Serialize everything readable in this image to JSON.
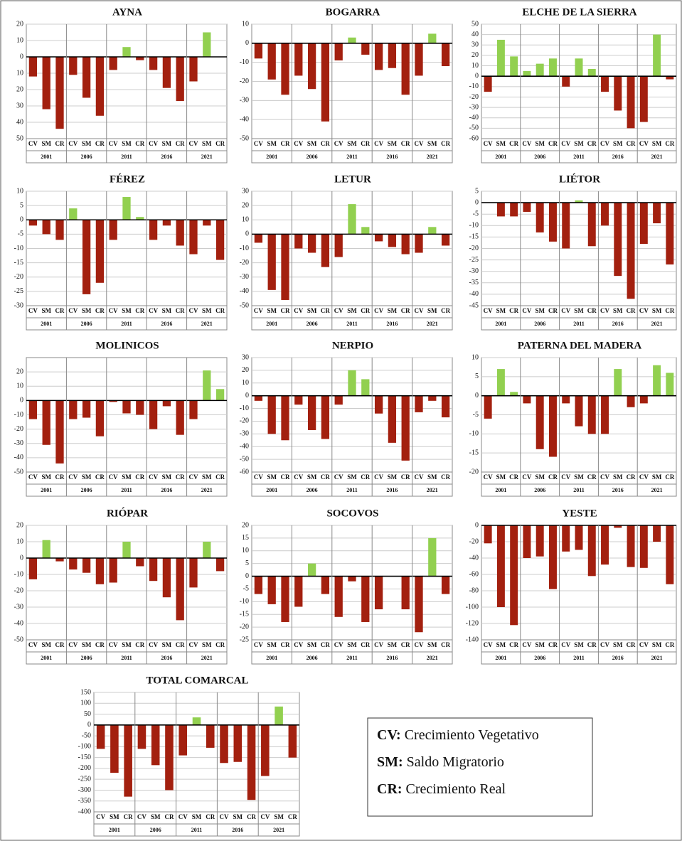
{
  "chart_data": [
    {
      "type": "bar",
      "title": "AYNA",
      "categories": [
        "CV",
        "SM",
        "CR",
        "CV",
        "SM",
        "CR",
        "CV",
        "SM",
        "CR",
        "CV",
        "SM",
        "CR",
        "CV",
        "SM",
        "CR"
      ],
      "groups": [
        "2001",
        "2006",
        "2011",
        "2016",
        "2021"
      ],
      "values": [
        -12,
        -32,
        -44,
        -11,
        -25,
        -36,
        -8,
        6,
        -2,
        -8,
        -19,
        -27,
        -15,
        15,
        0
      ],
      "ylim": [
        -50,
        20
      ],
      "yticks": [
        20,
        10,
        0,
        {
          "value": -10,
          "label": "10"
        },
        {
          "value": -20,
          "label": "20"
        },
        {
          "value": -30,
          "label": "30"
        },
        {
          "value": -40,
          "label": "40"
        },
        {
          "value": -50,
          "label": "50"
        }
      ],
      "positive_color": "#92d050",
      "negative_color": "#a3200f",
      "grid": true
    },
    {
      "type": "bar",
      "title": "BOGARRA",
      "categories": [
        "CV",
        "SM",
        "CR",
        "CV",
        "SM",
        "CR",
        "CV",
        "SM",
        "CR",
        "CV",
        "SM",
        "CR",
        "CV",
        "SM",
        "CR"
      ],
      "groups": [
        "2001",
        "2006",
        "2011",
        "2016",
        "2021"
      ],
      "values": [
        -8,
        -19,
        -27,
        -17,
        -24,
        -41,
        -9,
        3,
        -6,
        -14,
        -13,
        -27,
        -17,
        5,
        -12
      ],
      "ylim": [
        -50,
        10
      ],
      "yticks": [
        10,
        0,
        -10,
        -20,
        -30,
        -40,
        -50
      ],
      "positive_color": "#92d050",
      "negative_color": "#a3200f",
      "grid": true
    },
    {
      "type": "bar",
      "title": "ELCHE DE LA SIERRA",
      "categories": [
        "CV",
        "SM",
        "CR",
        "CV",
        "SM",
        "CR",
        "CV",
        "SM",
        "CR",
        "CV",
        "SM",
        "CR",
        "CV",
        "SM",
        "CR"
      ],
      "groups": [
        "2001",
        "2006",
        "2011",
        "2016",
        "2021"
      ],
      "values": [
        -15,
        35,
        19,
        5,
        12,
        17,
        -10,
        17,
        7,
        -15,
        -33,
        -50,
        -44,
        40,
        -3
      ],
      "ylim": [
        -60,
        50
      ],
      "yticks": [
        50,
        40,
        30,
        20,
        10,
        0,
        -10,
        -20,
        -30,
        -40,
        -50,
        -60
      ],
      "positive_color": "#92d050",
      "negative_color": "#a3200f",
      "grid": true
    },
    {
      "type": "bar",
      "title": "FÉREZ",
      "categories": [
        "CV",
        "SM",
        "CR",
        "CV",
        "SM",
        "CR",
        "CV",
        "SM",
        "CR",
        "CV",
        "SM",
        "CR",
        "CV",
        "SM",
        "CR"
      ],
      "groups": [
        "2001",
        "2006",
        "2011",
        "2016",
        "2021"
      ],
      "values": [
        -2,
        -5,
        -7,
        4,
        -26,
        -22,
        -7,
        8,
        1,
        -7,
        -2,
        -9,
        -12,
        -2,
        -14
      ],
      "ylim": [
        -30,
        10
      ],
      "yticks": [
        10,
        5,
        0,
        -5,
        -10,
        -15,
        -20,
        -25,
        -30
      ],
      "positive_color": "#92d050",
      "negative_color": "#a3200f",
      "grid": true
    },
    {
      "type": "bar",
      "title": "LETUR",
      "categories": [
        "CV",
        "SM",
        "CR",
        "CV",
        "SM",
        "CR",
        "CV",
        "SM",
        "CR",
        "CV",
        "SM",
        "CR",
        "CV",
        "SM",
        "CR"
      ],
      "groups": [
        "2001",
        "2006",
        "2011",
        "2016",
        "2021"
      ],
      "values": [
        -6,
        -39,
        -46,
        -10,
        -13,
        -23,
        -16,
        21,
        5,
        -5,
        -9,
        -14,
        -13,
        5,
        -8
      ],
      "ylim": [
        -50,
        30
      ],
      "yticks": [
        30,
        20,
        10,
        0,
        -10,
        -20,
        -30,
        -40,
        -50
      ],
      "positive_color": "#92d050",
      "negative_color": "#a3200f",
      "grid": true
    },
    {
      "type": "bar",
      "title": "LIÉTOR",
      "categories": [
        "CV",
        "SM",
        "CR",
        "CV",
        "SM",
        "CR",
        "CV",
        "SM",
        "CR",
        "CV",
        "SM",
        "CR",
        "CV",
        "SM",
        "CR"
      ],
      "groups": [
        "2001",
        "2006",
        "2011",
        "2016",
        "2021"
      ],
      "values": [
        0,
        -6,
        -6,
        -4,
        -13,
        -17,
        -20,
        1,
        -19,
        -10,
        -32,
        -42,
        -18,
        -9,
        -27
      ],
      "ylim": [
        -45,
        5
      ],
      "yticks": [
        5,
        0,
        -5,
        -10,
        -15,
        -20,
        -25,
        -30,
        -35,
        -40,
        -45
      ],
      "positive_color": "#92d050",
      "negative_color": "#a3200f",
      "grid": true
    },
    {
      "type": "bar",
      "title": "MOLINICOS",
      "categories": [
        "CV",
        "SM",
        "CR",
        "CV",
        "SM",
        "CR",
        "CV",
        "SM",
        "CR",
        "CV",
        "SM",
        "CR",
        "CV",
        "SM",
        "CR"
      ],
      "groups": [
        "2001",
        "2006",
        "2011",
        "2016",
        "2021"
      ],
      "values": [
        -13,
        -31,
        -44,
        -13,
        -12,
        -25,
        -1,
        -9,
        -10,
        -20,
        -4,
        -24,
        -13,
        21,
        8
      ],
      "ylim": [
        -50,
        30
      ],
      "yticks": [
        20,
        10,
        0,
        -10,
        -20,
        -30,
        -40,
        -50
      ],
      "positive_color": "#92d050",
      "negative_color": "#a3200f",
      "grid": true
    },
    {
      "type": "bar",
      "title": "NERPIO",
      "categories": [
        "CV",
        "SM",
        "CR",
        "CV",
        "SM",
        "CR",
        "CV",
        "SM",
        "CR",
        "CV",
        "SM",
        "CR",
        "CV",
        "SM",
        "CR"
      ],
      "groups": [
        "2001",
        "2006",
        "2011",
        "2016",
        "2021"
      ],
      "values": [
        -4,
        -30,
        -35,
        -7,
        -27,
        -34,
        -7,
        20,
        13,
        -14,
        -37,
        -51,
        -13,
        -4,
        -17
      ],
      "ylim": [
        -60,
        30
      ],
      "yticks": [
        30,
        20,
        10,
        0,
        -10,
        -20,
        -30,
        -40,
        -50,
        -60
      ],
      "positive_color": "#92d050",
      "negative_color": "#a3200f",
      "grid": true
    },
    {
      "type": "bar",
      "title": "PATERNA DEL MADERA",
      "categories": [
        "CV",
        "SM",
        "CR",
        "CV",
        "SM",
        "CR",
        "CV",
        "SM",
        "CR",
        "CV",
        "SM",
        "CR",
        "CV",
        "SM",
        "CR"
      ],
      "groups": [
        "2001",
        "2006",
        "2011",
        "2016",
        "2021"
      ],
      "values": [
        -6,
        7,
        1,
        -2,
        -14,
        -16,
        -2,
        -8,
        -10,
        -10,
        7,
        -3,
        -2,
        8,
        6
      ],
      "ylim": [
        -20,
        10
      ],
      "yticks": [
        10,
        5,
        0,
        -5,
        -10,
        -15,
        -20
      ],
      "positive_color": "#92d050",
      "negative_color": "#a3200f",
      "grid": true
    },
    {
      "type": "bar",
      "title": "RIÓPAR",
      "categories": [
        "CV",
        "SM",
        "CR",
        "CV",
        "SM",
        "CR",
        "CV",
        "SM",
        "CR",
        "CV",
        "SM",
        "CR",
        "CV",
        "SM",
        "CR"
      ],
      "groups": [
        "2001",
        "2006",
        "2011",
        "2016",
        "2021"
      ],
      "values": [
        -13,
        11,
        -2,
        -7,
        -9,
        -16,
        -15,
        10,
        -5,
        -14,
        -24,
        -38,
        -18,
        10,
        -8
      ],
      "ylim": [
        -50,
        20
      ],
      "yticks": [
        20,
        10,
        0,
        -10,
        -20,
        -30,
        -40,
        -50
      ],
      "positive_color": "#92d050",
      "negative_color": "#a3200f",
      "grid": true
    },
    {
      "type": "bar",
      "title": "SOCOVOS",
      "categories": [
        "CV",
        "SM",
        "CR",
        "CV",
        "SM",
        "CR",
        "CV",
        "SM",
        "CR",
        "CV",
        "SM",
        "CR",
        "CV",
        "SM",
        "CR"
      ],
      "groups": [
        "2001",
        "2006",
        "2011",
        "2016",
        "2021"
      ],
      "values": [
        -7,
        -11,
        -18,
        -12,
        5,
        -7,
        -16,
        -2,
        -18,
        -13,
        0,
        -13,
        -22,
        15,
        -7
      ],
      "ylim": [
        -25,
        20
      ],
      "yticks": [
        20,
        15,
        10,
        5,
        0,
        -5,
        -10,
        -15,
        -20,
        -25
      ],
      "positive_color": "#92d050",
      "negative_color": "#a3200f",
      "grid": true
    },
    {
      "type": "bar",
      "title": "YESTE",
      "categories": [
        "CV",
        "SM",
        "CR",
        "CV",
        "SM",
        "CR",
        "CV",
        "SM",
        "CR",
        "CV",
        "SM",
        "CR",
        "CV",
        "SM",
        "CR"
      ],
      "groups": [
        "2001",
        "2006",
        "2011",
        "2016",
        "2021"
      ],
      "values": [
        -22,
        -100,
        -122,
        -40,
        -38,
        -78,
        -32,
        -30,
        -62,
        -48,
        -3,
        -51,
        -52,
        -20,
        -72
      ],
      "ylim": [
        -140,
        0
      ],
      "yticks": [
        0,
        -20,
        -40,
        -60,
        -80,
        -100,
        -120,
        -140
      ],
      "positive_color": "#92d050",
      "negative_color": "#a3200f",
      "grid": true
    },
    {
      "type": "bar",
      "title": "TOTAL COMARCAL",
      "categories": [
        "CV",
        "SM",
        "CR",
        "CV",
        "SM",
        "CR",
        "CV",
        "SM",
        "CR",
        "CV",
        "SM",
        "CR",
        "CV",
        "SM",
        "CR"
      ],
      "groups": [
        "2001",
        "2006",
        "2011",
        "2016",
        "2021"
      ],
      "values": [
        -110,
        -220,
        -330,
        -110,
        -185,
        -300,
        -140,
        35,
        -105,
        -175,
        -170,
        -345,
        -235,
        85,
        -150
      ],
      "ylim": [
        -400,
        150
      ],
      "yticks": [
        150,
        100,
        50,
        0,
        -50,
        -100,
        -150,
        -200,
        -250,
        -300,
        -350,
        -400
      ],
      "positive_color": "#92d050",
      "negative_color": "#a3200f",
      "grid": true
    }
  ],
  "legend_box": [
    {
      "abbr": "CV:",
      "text": "Crecimiento Vegetativo"
    },
    {
      "abbr": "SM:",
      "text": "Saldo Migratorio"
    },
    {
      "abbr": "CR:",
      "text": "Crecimiento Real"
    }
  ]
}
